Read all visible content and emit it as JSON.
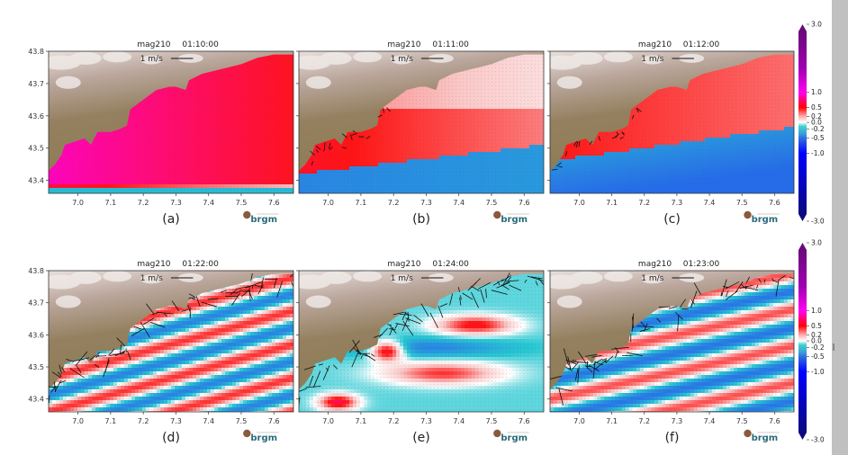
{
  "figure": {
    "colorbar_ticks": [
      "3.0",
      "1.0",
      "0.5",
      "0.2",
      "0.0",
      "-0.2",
      "-0.5",
      "-1.0",
      "-3.0"
    ],
    "logo_text": "brgm",
    "scale_label": "1 m/s"
  },
  "chart_data": {
    "type": "heatmap",
    "description": "Six map panels of a tsunami simulation current field (mag210) off the French Riviera coast; color = signed velocity component, arrows = current vectors",
    "xlabel": "",
    "ylabel": "",
    "xlim": [
      6.91,
      7.66
    ],
    "ylim": [
      43.36,
      43.8
    ],
    "x_ticks": [
      "7.0",
      "7.1",
      "7.2",
      "7.3",
      "7.4",
      "7.5",
      "7.6"
    ],
    "y_ticks": [
      "43.8",
      "43.7",
      "43.6",
      "43.5",
      "43.4"
    ],
    "x_tick_values": [
      7.0,
      7.1,
      7.2,
      7.3,
      7.4,
      7.5,
      7.6
    ],
    "y_tick_values": [
      43.8,
      43.7,
      43.6,
      43.5,
      43.4
    ],
    "colorbar": {
      "ticks": [
        3.0,
        1.0,
        0.5,
        0.2,
        0.0,
        -0.2,
        -0.5,
        -1.0,
        -3.0
      ],
      "range": [
        -3.0,
        3.0
      ],
      "extend": "both",
      "colors": {
        "max": "#6a0a7a",
        "pos_high": "#ff00ff",
        "pos": "#ff0000",
        "zero": "#ffffff",
        "neg_low": "#20c0c8",
        "neg": "#0000ff",
        "min": "#000080"
      }
    },
    "legend": "1 m/s reference arrow (top-center of each panel)",
    "panels": [
      {
        "id": "a",
        "label": "(a)",
        "title_name": "mag210",
        "time": "01:10:00",
        "row": 0,
        "col": 0,
        "pattern": "mostly positive (red) offshore, strongest near western coast, thin negative band at southern edge"
      },
      {
        "id": "b",
        "label": "(b)",
        "title_name": "mag210",
        "time": "01:11:00",
        "row": 0,
        "col": 1,
        "pattern": "positive band along coast, negative (cyan/blue) region in south"
      },
      {
        "id": "c",
        "label": "(c)",
        "title_name": "mag210",
        "time": "01:12:00",
        "row": 0,
        "col": 2,
        "pattern": "positive near coast, extensive negative region in southern half"
      },
      {
        "id": "d",
        "label": "(d)",
        "title_name": "mag210",
        "time": "01:22:00",
        "row": 1,
        "col": 0,
        "pattern": "alternating diagonal bands of positive and negative, strong vectors along coastline"
      },
      {
        "id": "e",
        "label": "(e)",
        "title_name": "mag210",
        "time": "01:24:00",
        "row": 1,
        "col": 1,
        "pattern": "alternating bands with positive lobes near (7.03,43.39), (7.18,43.55) and (7.45,43.62)"
      },
      {
        "id": "f",
        "label": "(f)",
        "title_name": "mag210",
        "time": "01:23:00",
        "row": 1,
        "col": 2,
        "pattern": "alternating bands, negative along coast, positive band through middle"
      }
    ]
  }
}
